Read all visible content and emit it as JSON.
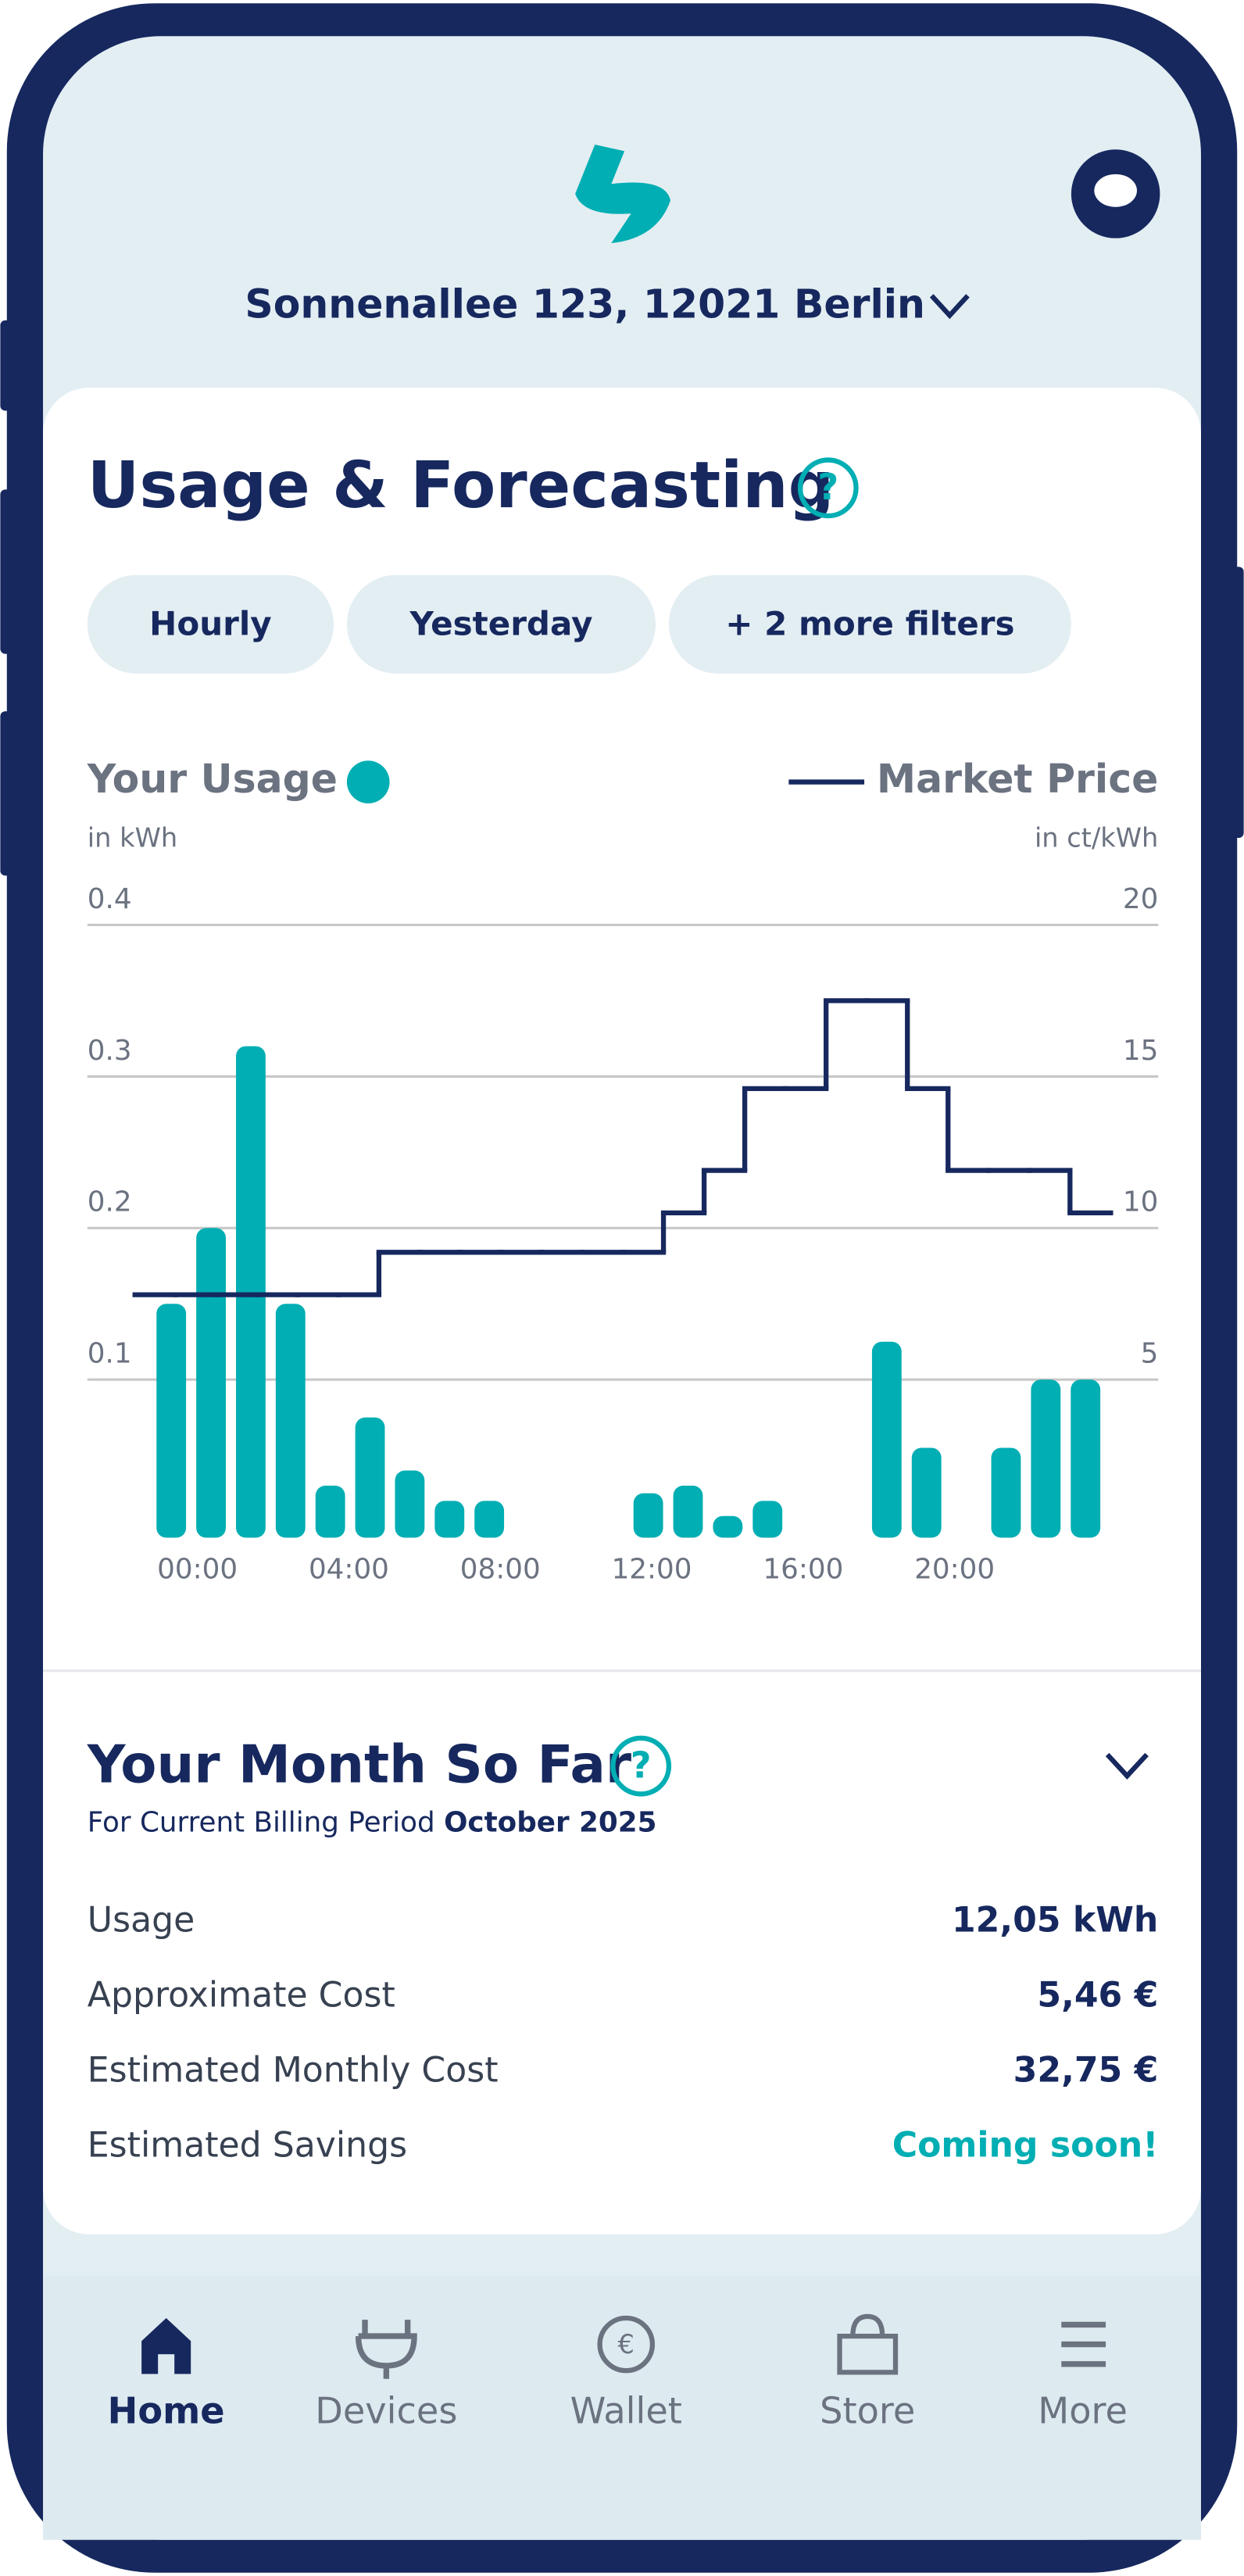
{
  "header": {
    "address": "Sonnenallee 123, 12021 Berlin"
  },
  "usage": {
    "title": "Usage & Forecasting",
    "filters": [
      "Hourly",
      "Yesterday",
      "+ 2 more filters"
    ]
  },
  "chart_data": {
    "type": "bar",
    "ylabel": "in kWh",
    "y2label": "in ct/kWh",
    "categories": [
      "00:00",
      null,
      null,
      null,
      "04:00",
      null,
      null,
      null,
      "08:00",
      null,
      null,
      null,
      "12:00",
      null,
      null,
      null,
      "16:00",
      null,
      null,
      null,
      "20:00",
      null,
      null,
      null
    ],
    "series": [
      {
        "name": "Your Usage",
        "color": "#00aeb3",
        "values": [
          0.15,
          0.2,
          0.32,
          0.15,
          0.03,
          0.075,
          0.04,
          0.02,
          0.02,
          0,
          0,
          0,
          0.025,
          0.03,
          0.01,
          0.02,
          0,
          0,
          0.125,
          0.055,
          0,
          0.055,
          0.1,
          0.1
        ]
      },
      {
        "name": "Market Price",
        "color": "#16285e",
        "type": "line",
        "axis": "y2",
        "values": [
          7.8,
          7.8,
          7.8,
          7.8,
          7.8,
          7.8,
          9.2,
          9.2,
          9.2,
          9.2,
          9.2,
          9.2,
          9.2,
          10.5,
          11.9,
          14.6,
          14.6,
          17.5,
          17.5,
          14.6,
          11.9,
          11.9,
          11.9,
          10.5
        ]
      }
    ],
    "ylim": [
      0,
      0.4
    ],
    "yticks": [
      0.1,
      0.2,
      0.3,
      0.4
    ],
    "y2lim": [
      0,
      20
    ],
    "y2ticks": [
      5,
      10,
      15,
      20
    ],
    "grid": true
  },
  "month": {
    "title": "Your Month So Far",
    "period_prefix": "For Current Billing Period",
    "period": "October 2025",
    "rows": [
      {
        "label": "Usage",
        "value": "12,05 kWh"
      },
      {
        "label": "Approximate Cost",
        "value": "5,46 €"
      },
      {
        "label": "Estimated Monthly Cost",
        "value": "32,75 €"
      },
      {
        "label": "Estimated Savings",
        "value": "Coming soon!"
      }
    ]
  },
  "nav": [
    "Home",
    "Devices",
    "Wallet",
    "Store",
    "More"
  ]
}
